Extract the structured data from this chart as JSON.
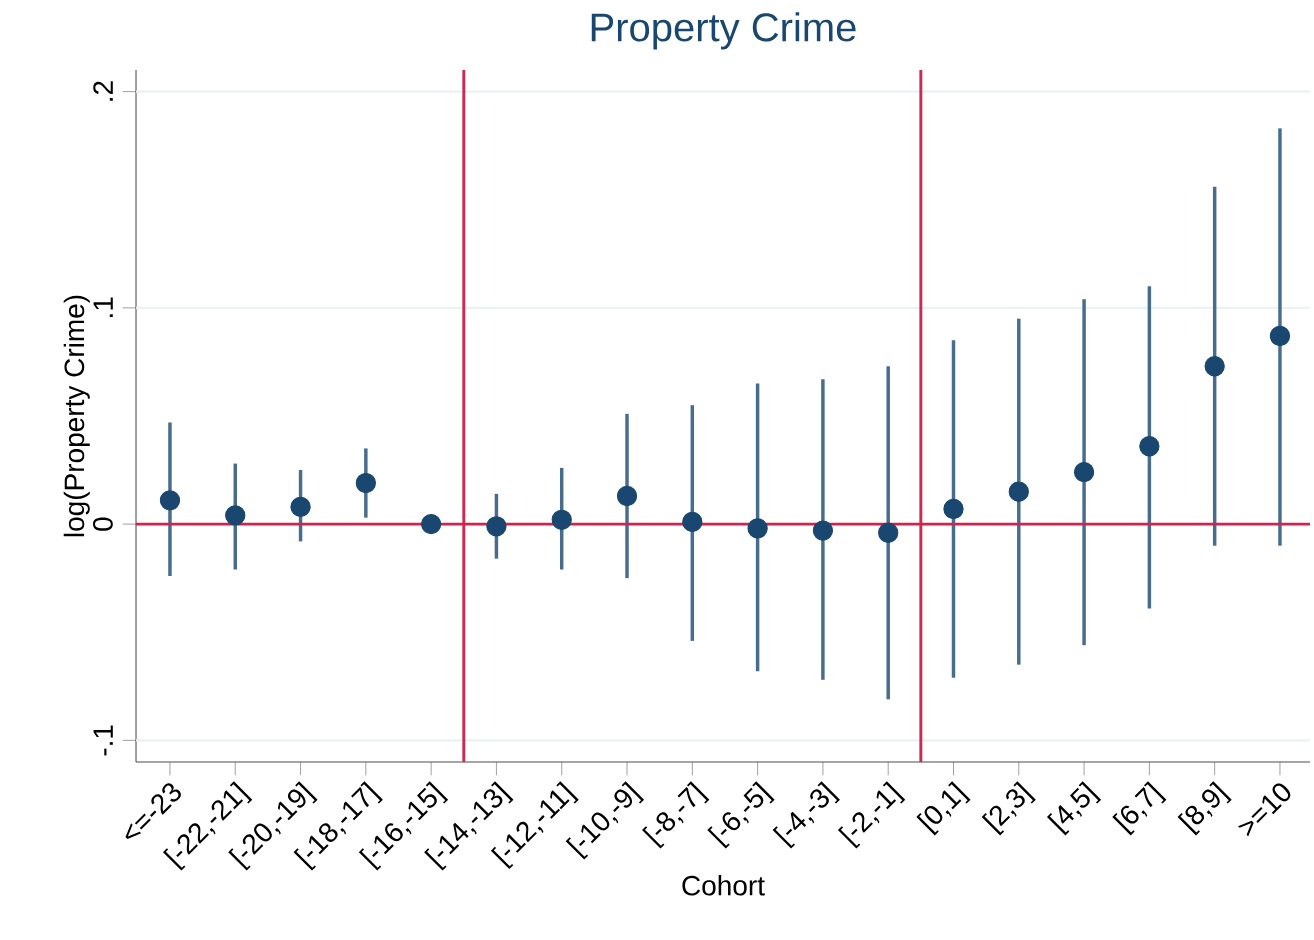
{
  "chart_data": {
    "type": "scatter",
    "title": "Property Crime",
    "xlabel": "Cohort",
    "ylabel": "log(Property Crime)",
    "categories": [
      "<=-23",
      "[-22,-21]",
      "[-20,-19]",
      "[-18,-17]",
      "[-16,-15]",
      "[-14,-13]",
      "[-12,-11]",
      "[-10,-9]",
      "[-8,-7]",
      "[-6,-5]",
      "[-4,-3]",
      "[-2,-1]",
      "[0,1]",
      "[2,3]",
      "[4,5]",
      "[6,7]",
      "[8,9]",
      ">=10"
    ],
    "series": [
      {
        "color": "#1a476f",
        "values": [
          0.011,
          0.004,
          0.008,
          0.019,
          0.0,
          -0.001,
          0.002,
          0.013,
          0.001,
          -0.002,
          -0.003,
          -0.004,
          0.007,
          0.015,
          0.024,
          0.036,
          0.073,
          0.087
        ],
        "errors": [
          [
            -0.024,
            0.047
          ],
          [
            -0.021,
            0.028
          ],
          [
            -0.008,
            0.025
          ],
          [
            0.003,
            0.035
          ],
          null,
          [
            -0.016,
            0.014
          ],
          [
            -0.021,
            0.026
          ],
          [
            -0.025,
            0.051
          ],
          [
            -0.054,
            0.055
          ],
          [
            -0.068,
            0.065
          ],
          [
            -0.072,
            0.067
          ],
          [
            -0.081,
            0.073
          ],
          [
            -0.071,
            0.085
          ],
          [
            -0.065,
            0.095
          ],
          [
            -0.056,
            0.104
          ],
          [
            -0.039,
            0.11
          ],
          [
            -0.01,
            0.156
          ],
          [
            -0.01,
            0.183
          ]
        ]
      }
    ],
    "ylim": [
      -0.11,
      0.21
    ],
    "yticks": [
      {
        "value": -0.1,
        "label": "-.1"
      },
      {
        "value": 0,
        "label": "0"
      },
      {
        "value": 0.1,
        "label": ".1"
      },
      {
        "value": 0.2,
        "label": ".2"
      }
    ],
    "ref_lines": [
      {
        "axis": "y",
        "value": 0,
        "color": "#d2224e"
      }
    ],
    "grid": "y",
    "marker": "circle"
  }
}
